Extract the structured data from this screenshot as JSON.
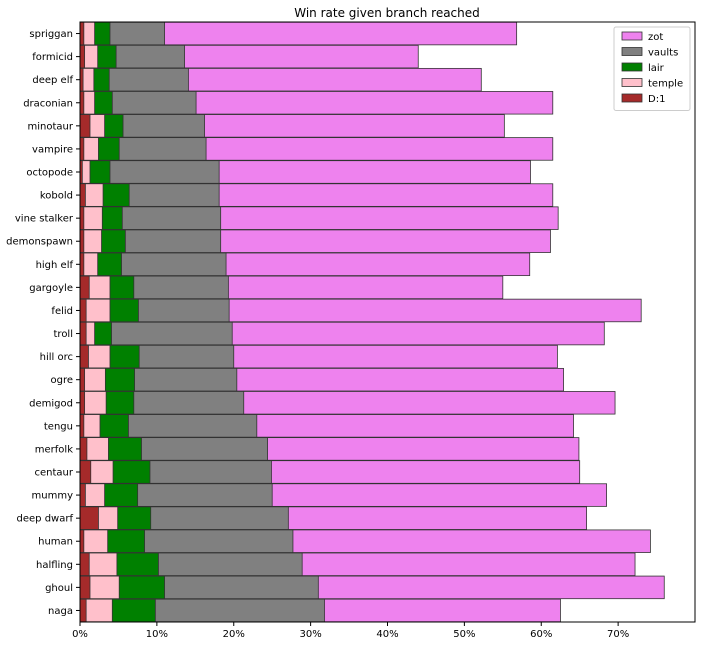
{
  "chart_data": {
    "type": "bar",
    "orientation": "horizontal",
    "stacked": false,
    "overlay": true,
    "title": "Win rate given branch reached",
    "xlabel": "",
    "ylabel": "",
    "xlim": [
      0,
      80
    ],
    "x_ticks": [
      0,
      10,
      20,
      30,
      40,
      50,
      60,
      70
    ],
    "x_tick_labels": [
      "0%",
      "10%",
      "20%",
      "30%",
      "40%",
      "50%",
      "60%",
      "70%"
    ],
    "grid": false,
    "legend_position": "top-right",
    "categories": [
      "spriggan",
      "formicid",
      "deep elf",
      "draconian",
      "minotaur",
      "vampire",
      "octopode",
      "kobold",
      "vine stalker",
      "demonspawn",
      "high elf",
      "gargoyle",
      "felid",
      "troll",
      "hill orc",
      "ogre",
      "demigod",
      "tengu",
      "merfolk",
      "centaur",
      "mummy",
      "deep dwarf",
      "human",
      "halfling",
      "ghoul",
      "naga"
    ],
    "series": [
      {
        "name": "zot",
        "color": "#ee82ee",
        "values": [
          56.8,
          44.0,
          52.2,
          61.5,
          55.2,
          61.5,
          58.6,
          61.5,
          62.2,
          61.2,
          58.5,
          55.0,
          73.0,
          68.2,
          62.1,
          62.9,
          69.6,
          64.2,
          64.9,
          65.0,
          68.5,
          65.9,
          74.2,
          72.2,
          76.0,
          62.5
        ]
      },
      {
        "name": "vaults",
        "color": "#808080",
        "values": [
          11.0,
          13.6,
          14.1,
          15.1,
          16.2,
          16.4,
          18.1,
          18.1,
          18.3,
          18.3,
          19.0,
          19.3,
          19.4,
          19.8,
          20.0,
          20.4,
          21.3,
          23.0,
          24.4,
          24.9,
          25.0,
          27.1,
          27.7,
          28.9,
          31.0,
          31.8
        ]
      },
      {
        "name": "lair",
        "color": "#008000",
        "values": [
          3.9,
          4.7,
          3.8,
          4.2,
          5.6,
          5.1,
          3.9,
          6.4,
          5.5,
          5.9,
          5.4,
          7.0,
          7.6,
          4.1,
          7.7,
          7.1,
          7.0,
          6.3,
          8.0,
          9.1,
          7.5,
          9.2,
          8.4,
          10.2,
          11.0,
          9.8
        ]
      },
      {
        "name": "temple",
        "color": "#ffc0cb",
        "values": [
          1.9,
          2.3,
          1.8,
          1.9,
          3.2,
          2.4,
          1.3,
          3.0,
          2.9,
          2.8,
          2.3,
          3.9,
          3.9,
          1.9,
          3.9,
          3.3,
          3.4,
          2.6,
          3.7,
          4.3,
          3.2,
          4.9,
          3.6,
          4.8,
          5.1,
          4.2
        ]
      },
      {
        "name": "D:1",
        "color": "#a52a2a",
        "values": [
          0.5,
          0.6,
          0.4,
          0.5,
          1.3,
          0.5,
          0.3,
          0.7,
          0.5,
          0.5,
          0.5,
          1.2,
          0.8,
          0.8,
          1.1,
          0.6,
          0.6,
          0.5,
          0.9,
          1.4,
          0.7,
          2.4,
          0.5,
          1.2,
          1.3,
          0.8
        ]
      }
    ]
  }
}
